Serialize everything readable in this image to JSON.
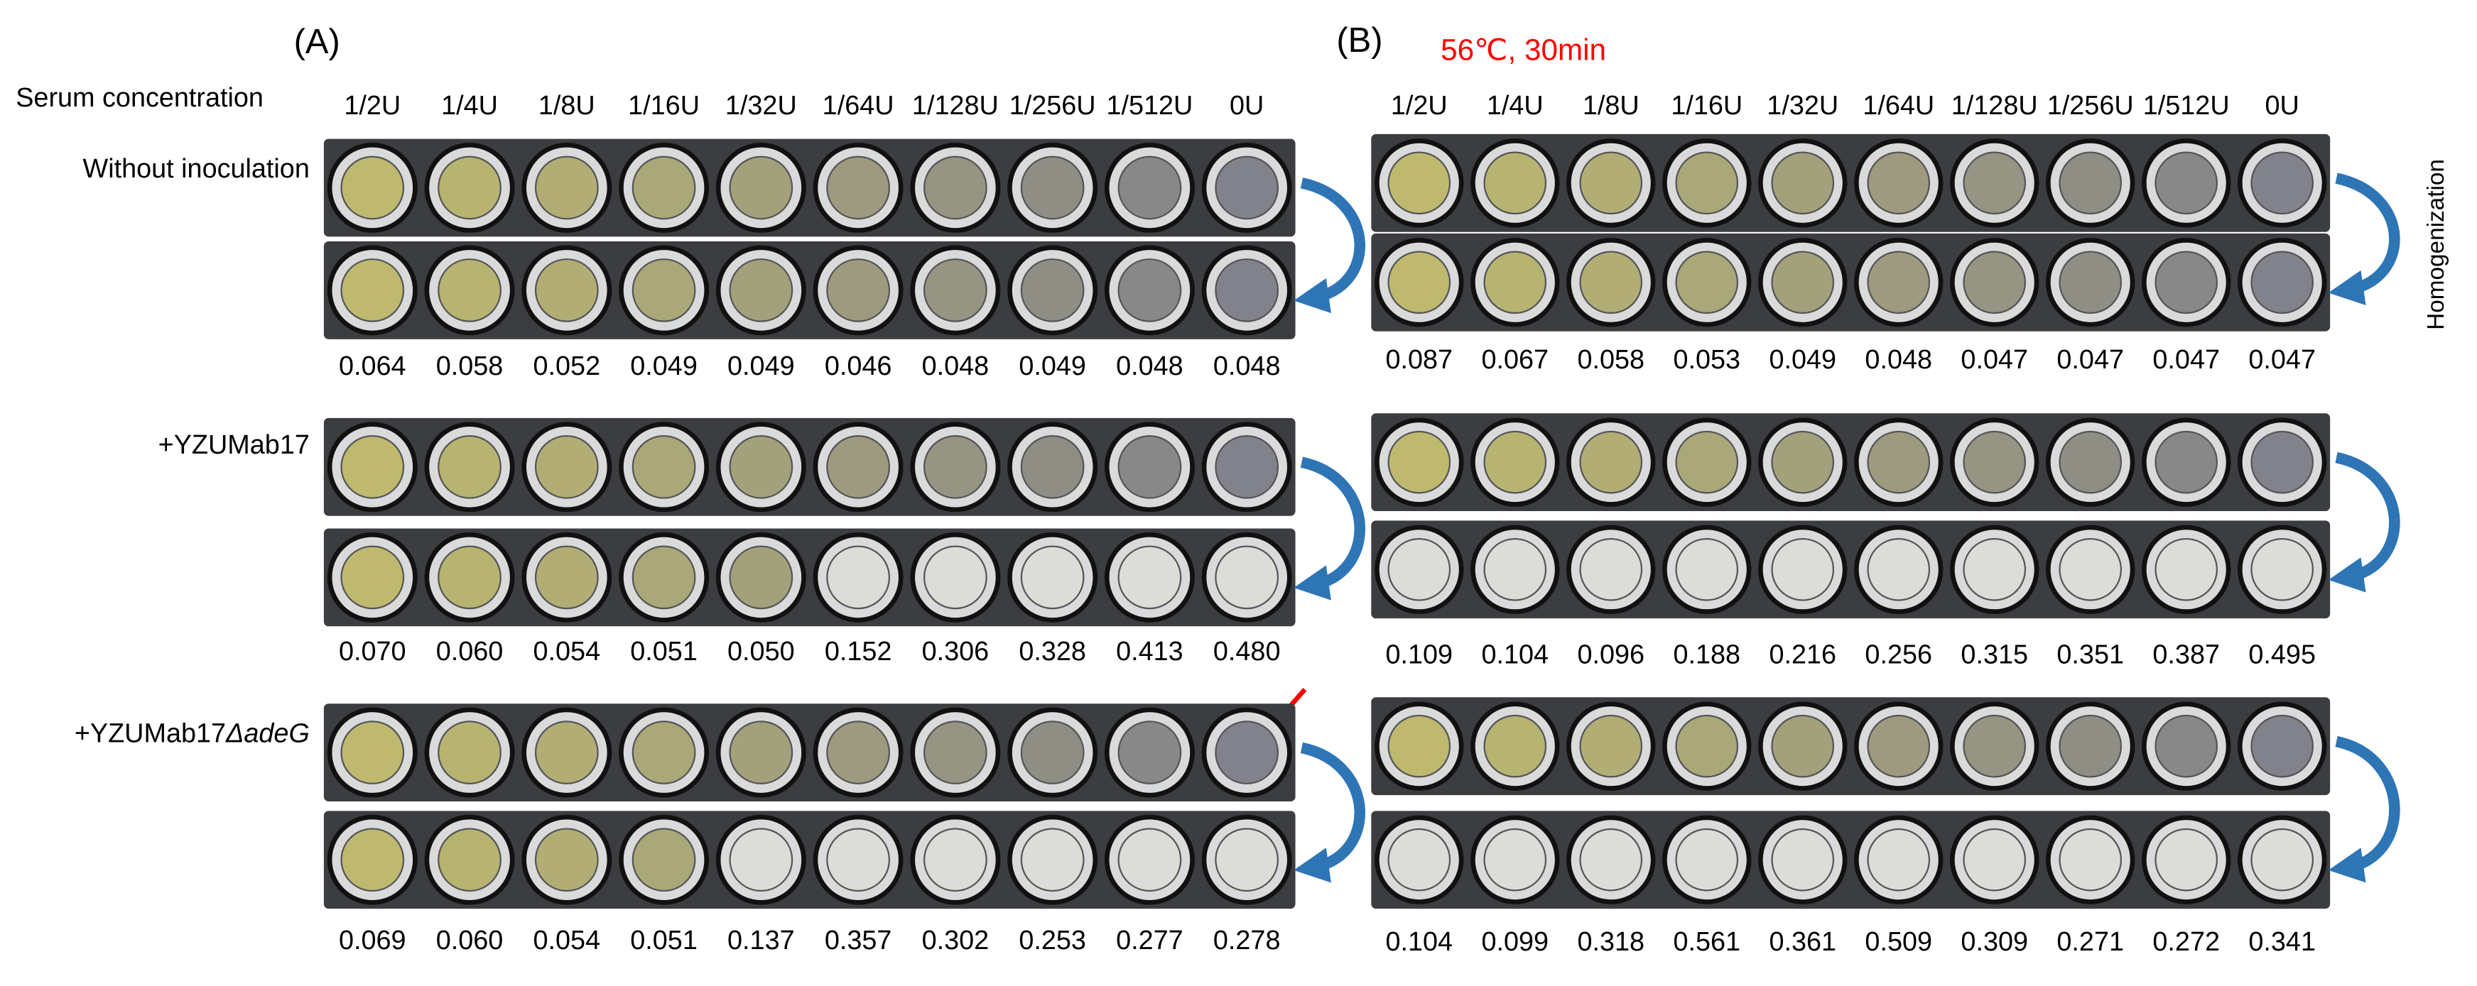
{
  "panels": [
    {
      "label": "(A)",
      "row_header": "Serum concentration",
      "columns": [
        "1/2U",
        "1/4U",
        "1/8U",
        "1/16U",
        "1/32U",
        "1/64U",
        "1/128U",
        "1/256U",
        "1/512U",
        "0U"
      ],
      "groups": [
        {
          "label": "Without inoculation",
          "values": [
            "0.064",
            "0.058",
            "0.052",
            "0.049",
            "0.049",
            "0.046",
            "0.048",
            "0.049",
            "0.048",
            "0.048"
          ],
          "colors": [
            "#000000",
            "#000000",
            "#000000",
            "#000000",
            "#000000",
            "#000000",
            "#000000",
            "#000000",
            "#000000",
            "#000000"
          ]
        },
        {
          "label": "+YZUMab17",
          "values": [
            "0.070",
            "0.060",
            "0.054",
            "0.051",
            "0.050",
            "0.152",
            "0.306",
            "0.328",
            "0.413",
            "0.480"
          ],
          "colors": [
            "#000000",
            "#000000",
            "#000000",
            "#000000",
            "#000000",
            "#ff0000",
            "#ff0000",
            "#ff0000",
            "#ff0000",
            "#ff0000"
          ]
        },
        {
          "label": "+YZUMab17",
          "label_italic": "ΔadeG",
          "values": [
            "0.069",
            "0.060",
            "0.054",
            "0.051",
            "0.137",
            "0.357",
            "0.302",
            "0.253",
            "0.277",
            "0.278"
          ],
          "colors": [
            "#000000",
            "#000000",
            "#000000",
            "#000000",
            "#ff0000",
            "#ff0000",
            "#ff0000",
            "#ff0000",
            "#ff0000",
            "#ff0000"
          ]
        }
      ]
    },
    {
      "label": "(B)",
      "condition": "56℃, 30min",
      "side_label": "Homogenization",
      "columns": [
        "1/2U",
        "1/4U",
        "1/8U",
        "1/16U",
        "1/32U",
        "1/64U",
        "1/128U",
        "1/256U",
        "1/512U",
        "0U"
      ],
      "groups": [
        {
          "values": [
            "0.087",
            "0.067",
            "0.058",
            "0.053",
            "0.049",
            "0.048",
            "0.047",
            "0.047",
            "0.047",
            "0.047"
          ],
          "colors": [
            "#000000",
            "#000000",
            "#000000",
            "#000000",
            "#000000",
            "#000000",
            "#000000",
            "#000000",
            "#000000",
            "#000000"
          ]
        },
        {
          "values": [
            "0.109",
            "0.104",
            "0.096",
            "0.188",
            "0.216",
            "0.256",
            "0.315",
            "0.351",
            "0.387",
            "0.495"
          ],
          "colors": [
            "#ff0000",
            "#ff0000",
            "#ff0000",
            "#ff0000",
            "#ff0000",
            "#ff0000",
            "#ff0000",
            "#ff0000",
            "#ff0000",
            "#ff0000"
          ]
        },
        {
          "values": [
            "0.104",
            "0.099",
            "0.318",
            "0.561",
            "0.361",
            "0.509",
            "0.309",
            "0.271",
            "0.272",
            "0.341"
          ],
          "colors": [
            "#ff0000",
            "#ff0000",
            "#ff0000",
            "#ff0000",
            "#ff0000",
            "#ff0000",
            "#ff0000",
            "#ff0000",
            "#ff0000",
            "#ff0000"
          ]
        }
      ]
    }
  ]
}
